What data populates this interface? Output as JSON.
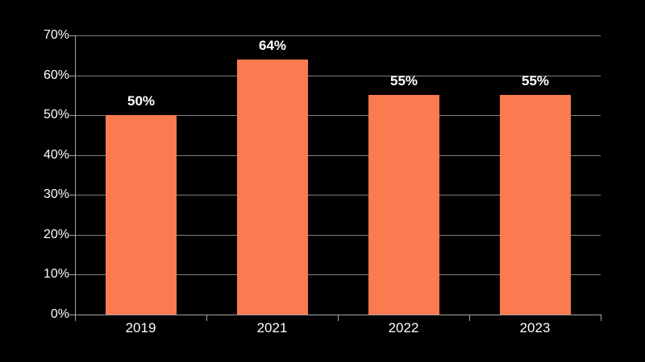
{
  "chart_data": {
    "type": "bar",
    "categories": [
      "2019",
      "2021",
      "2022",
      "2023"
    ],
    "values": [
      50,
      64,
      55,
      55
    ],
    "data_labels": [
      "50%",
      "64%",
      "55%",
      "55%"
    ],
    "title": "",
    "xlabel": "",
    "ylabel": "",
    "ylim": [
      0,
      70
    ],
    "ytick_step": 10,
    "ytick_labels": [
      "0%",
      "10%",
      "20%",
      "30%",
      "40%",
      "50%",
      "60%",
      "70%"
    ],
    "grid": true,
    "legend": false,
    "colors": {
      "background": "#000000",
      "bar": "#FC7A50",
      "gridline": "#808080",
      "axis": "#a6a6a6",
      "label_text": "#ffffff"
    }
  }
}
